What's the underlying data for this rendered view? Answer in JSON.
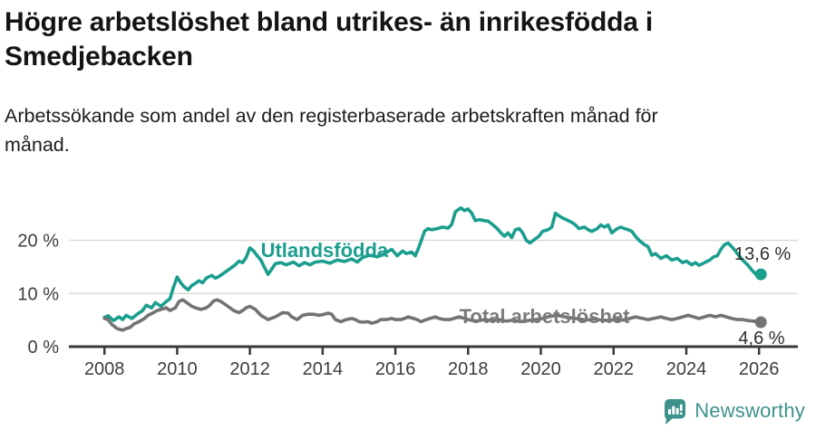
{
  "header": {
    "title": "Högre arbetslöshet bland utrikes- än inrikesfödda i Smedjebacken",
    "title_lines": [
      "Högre arbetslöshet bland utrikes- än inrikesfödda i",
      "Smedjebacken"
    ],
    "subtitle": "Arbetssökande som andel av den registerbaserade arbetskraften månad för månad.",
    "subtitle_lines": [
      "Arbetssökande som andel av den registerbaserade arbetskraften månad för",
      "månad."
    ]
  },
  "footer": {
    "brand": "Newsworthy",
    "brand_color": "#3e928c"
  },
  "chart_data": {
    "type": "line",
    "title": "Högre arbetslöshet bland utrikes- än inrikesfödda i Smedjebacken",
    "subtitle": "Arbetssökande som andel av den registerbaserade arbetskraften månad för månad.",
    "unit": "%",
    "xlabel": "",
    "ylabel": "",
    "xlim": [
      2007.1,
      2027.1
    ],
    "ylim": [
      0,
      28
    ],
    "grid": "horizontal",
    "legend_position": "inline-labels",
    "x_ticks": [
      2008,
      2010,
      2012,
      2014,
      2016,
      2018,
      2020,
      2022,
      2024,
      2026
    ],
    "y_ticks": [
      {
        "v": 0,
        "label": "0 %"
      },
      {
        "v": 10,
        "label": "10 %"
      },
      {
        "v": 20,
        "label": "20 %"
      }
    ],
    "series": [
      {
        "name": "Utlandsfödda",
        "color": "#1b9e8e",
        "end_value": 13.6,
        "end_label": "13,6 %",
        "name_label_anchor": {
          "x": 2014.05,
          "y": 18.2
        },
        "end_label_anchor": {
          "x": 2026.1,
          "y": 17.5
        },
        "points": [
          [
            2008.0,
            5.5
          ],
          [
            2008.1,
            5.8
          ],
          [
            2008.25,
            4.9
          ],
          [
            2008.4,
            5.6
          ],
          [
            2008.5,
            5.1
          ],
          [
            2008.6,
            5.9
          ],
          [
            2008.75,
            5.3
          ],
          [
            2008.9,
            6.1
          ],
          [
            2009.05,
            6.8
          ],
          [
            2009.15,
            7.8
          ],
          [
            2009.3,
            7.3
          ],
          [
            2009.4,
            8.3
          ],
          [
            2009.55,
            7.6
          ],
          [
            2009.7,
            8.5
          ],
          [
            2009.8,
            9.0
          ],
          [
            2009.9,
            11.2
          ],
          [
            2010.0,
            13.1
          ],
          [
            2010.1,
            12.0
          ],
          [
            2010.2,
            11.2
          ],
          [
            2010.3,
            10.7
          ],
          [
            2010.4,
            11.5
          ],
          [
            2010.5,
            11.9
          ],
          [
            2010.6,
            12.4
          ],
          [
            2010.7,
            12.0
          ],
          [
            2010.8,
            12.9
          ],
          [
            2010.95,
            13.4
          ],
          [
            2011.05,
            12.9
          ],
          [
            2011.15,
            13.2
          ],
          [
            2011.25,
            13.7
          ],
          [
            2011.4,
            14.4
          ],
          [
            2011.5,
            14.9
          ],
          [
            2011.6,
            15.4
          ],
          [
            2011.7,
            16.1
          ],
          [
            2011.8,
            15.8
          ],
          [
            2011.9,
            16.8
          ],
          [
            2012.0,
            18.6
          ],
          [
            2012.1,
            18.0
          ],
          [
            2012.2,
            17.1
          ],
          [
            2012.3,
            16.3
          ],
          [
            2012.4,
            14.9
          ],
          [
            2012.5,
            13.6
          ],
          [
            2012.6,
            14.6
          ],
          [
            2012.7,
            15.6
          ],
          [
            2012.85,
            15.8
          ],
          [
            2013.0,
            15.4
          ],
          [
            2013.2,
            15.9
          ],
          [
            2013.35,
            15.2
          ],
          [
            2013.5,
            15.8
          ],
          [
            2013.65,
            15.4
          ],
          [
            2013.8,
            15.9
          ],
          [
            2014.0,
            16.1
          ],
          [
            2014.2,
            15.7
          ],
          [
            2014.4,
            16.3
          ],
          [
            2014.6,
            16.0
          ],
          [
            2014.8,
            16.5
          ],
          [
            2014.95,
            15.9
          ],
          [
            2015.1,
            16.8
          ],
          [
            2015.3,
            17.2
          ],
          [
            2015.5,
            16.9
          ],
          [
            2015.7,
            17.5
          ],
          [
            2015.9,
            18.3
          ],
          [
            2016.05,
            17.1
          ],
          [
            2016.2,
            18.0
          ],
          [
            2016.3,
            17.5
          ],
          [
            2016.45,
            17.8
          ],
          [
            2016.55,
            17.1
          ],
          [
            2016.65,
            18.8
          ],
          [
            2016.8,
            21.7
          ],
          [
            2016.9,
            22.2
          ],
          [
            2017.0,
            22.0
          ],
          [
            2017.15,
            22.2
          ],
          [
            2017.3,
            22.5
          ],
          [
            2017.45,
            22.3
          ],
          [
            2017.55,
            23.0
          ],
          [
            2017.65,
            25.4
          ],
          [
            2017.8,
            26.1
          ],
          [
            2017.9,
            25.6
          ],
          [
            2018.0,
            25.9
          ],
          [
            2018.1,
            25.1
          ],
          [
            2018.2,
            23.7
          ],
          [
            2018.3,
            23.9
          ],
          [
            2018.45,
            23.7
          ],
          [
            2018.55,
            23.6
          ],
          [
            2018.65,
            23.1
          ],
          [
            2018.8,
            22.2
          ],
          [
            2018.9,
            21.4
          ],
          [
            2019.0,
            20.8
          ],
          [
            2019.1,
            21.4
          ],
          [
            2019.2,
            20.5
          ],
          [
            2019.3,
            22.0
          ],
          [
            2019.4,
            22.2
          ],
          [
            2019.5,
            21.4
          ],
          [
            2019.6,
            20.0
          ],
          [
            2019.7,
            19.5
          ],
          [
            2019.85,
            20.3
          ],
          [
            2019.95,
            20.8
          ],
          [
            2020.05,
            21.7
          ],
          [
            2020.2,
            22.0
          ],
          [
            2020.3,
            22.5
          ],
          [
            2020.4,
            25.1
          ],
          [
            2020.5,
            24.6
          ],
          [
            2020.6,
            24.2
          ],
          [
            2020.7,
            23.9
          ],
          [
            2020.85,
            23.4
          ],
          [
            2020.95,
            22.9
          ],
          [
            2021.05,
            22.2
          ],
          [
            2021.2,
            22.5
          ],
          [
            2021.3,
            22.0
          ],
          [
            2021.4,
            21.7
          ],
          [
            2021.55,
            22.2
          ],
          [
            2021.65,
            22.9
          ],
          [
            2021.75,
            22.5
          ],
          [
            2021.85,
            22.9
          ],
          [
            2021.95,
            21.4
          ],
          [
            2022.1,
            22.2
          ],
          [
            2022.2,
            22.5
          ],
          [
            2022.3,
            22.2
          ],
          [
            2022.4,
            22.0
          ],
          [
            2022.5,
            21.7
          ],
          [
            2022.6,
            20.8
          ],
          [
            2022.7,
            20.0
          ],
          [
            2022.85,
            19.2
          ],
          [
            2022.95,
            18.8
          ],
          [
            2023.05,
            17.2
          ],
          [
            2023.15,
            17.5
          ],
          [
            2023.3,
            16.6
          ],
          [
            2023.45,
            17.1
          ],
          [
            2023.6,
            16.3
          ],
          [
            2023.75,
            16.6
          ],
          [
            2023.9,
            15.8
          ],
          [
            2024.0,
            16.1
          ],
          [
            2024.15,
            15.4
          ],
          [
            2024.25,
            15.8
          ],
          [
            2024.35,
            15.3
          ],
          [
            2024.5,
            15.8
          ],
          [
            2024.65,
            16.3
          ],
          [
            2024.75,
            16.9
          ],
          [
            2024.85,
            17.1
          ],
          [
            2024.95,
            18.3
          ],
          [
            2025.05,
            19.2
          ],
          [
            2025.15,
            19.5
          ],
          [
            2025.25,
            18.8
          ],
          [
            2025.35,
            18.0
          ],
          [
            2025.45,
            17.1
          ],
          [
            2025.55,
            16.3
          ],
          [
            2025.7,
            15.3
          ],
          [
            2025.8,
            14.4
          ],
          [
            2025.9,
            13.7
          ],
          [
            2026.05,
            13.6
          ]
        ]
      },
      {
        "name": "Total arbetslöshet",
        "color": "#737373",
        "end_value": 4.6,
        "end_label": "4,6 %",
        "name_label_anchor": {
          "x": 2020.1,
          "y": 5.8
        },
        "end_label_anchor": {
          "x": 2026.07,
          "y": 1.7
        },
        "points": [
          [
            2008.0,
            5.3
          ],
          [
            2008.1,
            5.1
          ],
          [
            2008.2,
            4.2
          ],
          [
            2008.35,
            3.4
          ],
          [
            2008.5,
            3.1
          ],
          [
            2008.6,
            3.4
          ],
          [
            2008.7,
            3.6
          ],
          [
            2008.8,
            4.2
          ],
          [
            2008.95,
            4.7
          ],
          [
            2009.1,
            5.3
          ],
          [
            2009.2,
            5.9
          ],
          [
            2009.35,
            6.4
          ],
          [
            2009.45,
            6.8
          ],
          [
            2009.55,
            7.0
          ],
          [
            2009.7,
            7.3
          ],
          [
            2009.8,
            6.8
          ],
          [
            2009.95,
            7.3
          ],
          [
            2010.05,
            8.5
          ],
          [
            2010.15,
            8.8
          ],
          [
            2010.3,
            8.1
          ],
          [
            2010.4,
            7.6
          ],
          [
            2010.5,
            7.3
          ],
          [
            2010.65,
            7.0
          ],
          [
            2010.8,
            7.3
          ],
          [
            2010.9,
            7.8
          ],
          [
            2011.0,
            8.6
          ],
          [
            2011.1,
            8.8
          ],
          [
            2011.2,
            8.5
          ],
          [
            2011.35,
            7.8
          ],
          [
            2011.45,
            7.3
          ],
          [
            2011.55,
            6.8
          ],
          [
            2011.7,
            6.4
          ],
          [
            2011.8,
            6.8
          ],
          [
            2011.9,
            7.3
          ],
          [
            2012.0,
            7.6
          ],
          [
            2012.15,
            7.0
          ],
          [
            2012.3,
            5.9
          ],
          [
            2012.5,
            5.1
          ],
          [
            2012.7,
            5.6
          ],
          [
            2012.9,
            6.4
          ],
          [
            2013.05,
            6.3
          ],
          [
            2013.15,
            5.6
          ],
          [
            2013.3,
            5.1
          ],
          [
            2013.45,
            5.9
          ],
          [
            2013.6,
            6.1
          ],
          [
            2013.75,
            6.1
          ],
          [
            2013.9,
            5.9
          ],
          [
            2014.05,
            6.1
          ],
          [
            2014.15,
            6.3
          ],
          [
            2014.25,
            6.1
          ],
          [
            2014.35,
            5.1
          ],
          [
            2014.5,
            4.7
          ],
          [
            2014.65,
            5.1
          ],
          [
            2014.8,
            5.3
          ],
          [
            2014.9,
            5.1
          ],
          [
            2015.0,
            4.7
          ],
          [
            2015.1,
            4.6
          ],
          [
            2015.25,
            4.7
          ],
          [
            2015.35,
            4.4
          ],
          [
            2015.5,
            4.7
          ],
          [
            2015.6,
            5.1
          ],
          [
            2015.75,
            5.1
          ],
          [
            2015.9,
            5.3
          ],
          [
            2016.0,
            5.1
          ],
          [
            2016.15,
            5.1
          ],
          [
            2016.25,
            5.3
          ],
          [
            2016.35,
            5.6
          ],
          [
            2016.5,
            5.3
          ],
          [
            2016.6,
            5.1
          ],
          [
            2016.7,
            4.7
          ],
          [
            2016.85,
            5.1
          ],
          [
            2016.95,
            5.3
          ],
          [
            2017.1,
            5.6
          ],
          [
            2017.2,
            5.3
          ],
          [
            2017.35,
            5.1
          ],
          [
            2017.5,
            5.1
          ],
          [
            2017.6,
            5.3
          ],
          [
            2017.75,
            5.6
          ],
          [
            2017.9,
            5.3
          ],
          [
            2018.05,
            5.0
          ],
          [
            2018.25,
            4.8
          ],
          [
            2018.45,
            5.1
          ],
          [
            2018.65,
            4.9
          ],
          [
            2018.85,
            5.1
          ],
          [
            2019.05,
            4.8
          ],
          [
            2019.25,
            5.0
          ],
          [
            2019.45,
            4.7
          ],
          [
            2019.65,
            4.9
          ],
          [
            2019.85,
            5.1
          ],
          [
            2020.05,
            5.3
          ],
          [
            2020.25,
            5.7
          ],
          [
            2020.45,
            5.9
          ],
          [
            2020.65,
            5.6
          ],
          [
            2020.85,
            5.4
          ],
          [
            2021.05,
            5.2
          ],
          [
            2021.25,
            5.0
          ],
          [
            2021.45,
            5.2
          ],
          [
            2021.65,
            5.0
          ],
          [
            2021.85,
            4.9
          ],
          [
            2022.05,
            5.1
          ],
          [
            2022.25,
            5.0
          ],
          [
            2022.45,
            5.3
          ],
          [
            2022.6,
            5.6
          ],
          [
            2022.8,
            5.3
          ],
          [
            2022.95,
            5.1
          ],
          [
            2023.1,
            5.3
          ],
          [
            2023.3,
            5.6
          ],
          [
            2023.45,
            5.3
          ],
          [
            2023.6,
            5.1
          ],
          [
            2023.75,
            5.3
          ],
          [
            2023.9,
            5.6
          ],
          [
            2024.05,
            5.9
          ],
          [
            2024.2,
            5.6
          ],
          [
            2024.35,
            5.3
          ],
          [
            2024.5,
            5.6
          ],
          [
            2024.65,
            5.9
          ],
          [
            2024.8,
            5.6
          ],
          [
            2024.95,
            5.9
          ],
          [
            2025.1,
            5.6
          ],
          [
            2025.25,
            5.3
          ],
          [
            2025.4,
            5.1
          ],
          [
            2025.55,
            5.1
          ],
          [
            2025.7,
            4.9
          ],
          [
            2025.85,
            4.8
          ],
          [
            2026.05,
            4.6
          ]
        ]
      }
    ]
  }
}
